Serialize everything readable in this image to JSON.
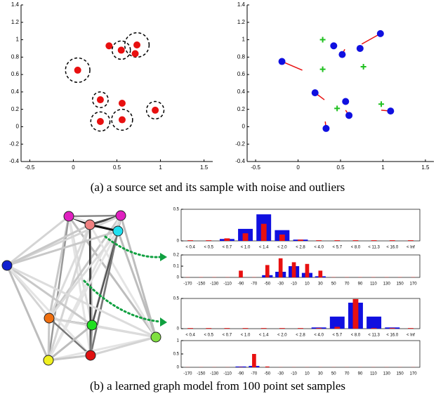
{
  "captions": {
    "a": "(a) a source set and its sample with noise and outliers",
    "b": "(b) a learned graph model from 100 point set samples"
  },
  "chart_data": [
    {
      "type": "scatter",
      "xlim": [
        -0.6,
        1.6
      ],
      "ylim": [
        -0.4,
        1.4
      ],
      "xticks": [
        -0.5,
        0,
        0.5,
        1,
        1.5
      ],
      "yticks": [
        -0.4,
        -0.2,
        0,
        0.2,
        0.4,
        0.6,
        0.8,
        1,
        1.2,
        1.4
      ],
      "series": [
        {
          "color": "#e81010",
          "marker": "circle",
          "x": [
            0.41,
            0.55,
            0.73,
            0.71,
            0.05,
            0.31,
            0.56,
            0.94,
            0.31,
            0.56
          ],
          "values": [
            0.93,
            0.88,
            0.94,
            0.84,
            0.65,
            0.31,
            0.27,
            0.19,
            0.06,
            0.08
          ]
        }
      ],
      "circles": {
        "x": [
          0.55,
          0.73,
          0.05,
          0.31,
          0.56,
          0.31,
          0.94
        ],
        "y": [
          0.88,
          0.94,
          0.65,
          0.31,
          0.08,
          0.06,
          0.19
        ],
        "r": [
          0.105,
          0.14,
          0.14,
          0.09,
          0.12,
          0.11,
          0.1
        ]
      }
    },
    {
      "type": "scatter",
      "xlim": [
        -0.6,
        1.6
      ],
      "ylim": [
        -0.4,
        1.4
      ],
      "xticks": [
        -0.5,
        0,
        0.5,
        1,
        1.5
      ],
      "yticks": [
        -0.4,
        -0.2,
        0,
        0.2,
        0.4,
        0.6,
        0.8,
        1,
        1.2,
        1.4
      ],
      "series": [
        {
          "color": "#1010e0",
          "marker": "circle",
          "x": [
            -0.19,
            0.42,
            0.52,
            0.73,
            0.97,
            0.2,
            0.56,
            0.6,
            0.33,
            1.09
          ],
          "values": [
            0.75,
            0.93,
            0.83,
            0.9,
            1.07,
            0.39,
            0.29,
            0.13,
            -0.02,
            0.18
          ]
        },
        {
          "color": "#20c020",
          "marker": "plus",
          "x": [
            0.29,
            0.29,
            0.77,
            0.46,
            0.98
          ],
          "values": [
            1.0,
            0.66,
            0.69,
            0.21,
            0.26
          ]
        }
      ],
      "segments": {
        "color": "#e81010",
        "x2": [
          0.05,
          null,
          0.55,
          null,
          0.75,
          0.31,
          null,
          0.56,
          0.32,
          0.98
        ],
        "y2": [
          0.65,
          null,
          0.89,
          null,
          0.95,
          0.31,
          null,
          0.19,
          0.06,
          0.19
        ]
      }
    },
    {
      "type": "bar",
      "ylim": [
        0,
        0.5
      ],
      "yticks": [
        0,
        0.5
      ],
      "categories": [
        "< 0.4",
        "< 0.5",
        "< 0.7",
        "< 1.0",
        "< 1.4",
        "< 2.0",
        "< 2.8",
        "< 4.0",
        "< 5.7",
        "< 8.0",
        "< 11.3",
        "< 16.0",
        "< Inf"
      ],
      "series": [
        {
          "color": "#1010e0",
          "values": [
            0,
            0,
            0.03,
            0.19,
            0.42,
            0.17,
            0.02,
            0,
            0,
            0,
            0,
            0,
            0
          ]
        },
        {
          "color": "#e81010",
          "values": [
            0.01,
            0.01,
            0.04,
            0.12,
            0.27,
            0.1,
            0.02,
            0.01,
            0.01,
            0.01,
            0.01,
            0.01,
            0.01
          ]
        }
      ]
    },
    {
      "type": "bar",
      "ylim": [
        0,
        0.2
      ],
      "yticks": [
        0,
        0.1,
        0.2
      ],
      "categories": [
        "-170",
        "-150",
        "-130",
        "-110",
        "-90",
        "-70",
        "-50",
        "-30",
        "-10",
        "10",
        "30",
        "50",
        "70",
        "90",
        "110",
        "130",
        "150",
        "170"
      ],
      "series": [
        {
          "color": "#1010e0",
          "values": [
            0,
            0,
            0,
            0,
            0,
            0,
            0.02,
            0.05,
            0.1,
            0.04,
            0.01,
            0,
            0,
            0,
            0,
            0,
            0,
            0
          ]
        },
        {
          "color": "#e81010",
          "values": [
            0.002,
            0.002,
            0.002,
            0.002,
            0.06,
            0.002,
            0.11,
            0.17,
            0.135,
            0.12,
            0.06,
            0.002,
            0.002,
            0.002,
            0.002,
            0.002,
            0.002,
            0.002
          ]
        }
      ]
    },
    {
      "type": "bar",
      "ylim": [
        0,
        0.5
      ],
      "yticks": [
        0,
        0.5
      ],
      "categories": [
        "< 0.4",
        "< 0.5",
        "< 0.7",
        "< 1.0",
        "< 1.4",
        "< 2.0",
        "< 2.8",
        "< 4.0",
        "< 5.7",
        "< 8.0",
        "< 11.3",
        "< 16.0",
        "< Inf"
      ],
      "series": [
        {
          "color": "#1010e0",
          "values": [
            0,
            0,
            0,
            0,
            0,
            0,
            0,
            0.02,
            0.2,
            0.43,
            0.2,
            0.02,
            0
          ]
        },
        {
          "color": "#e81010",
          "values": [
            0.01,
            0.01,
            0.01,
            0.01,
            0.01,
            0.01,
            0.01,
            0.01,
            0.03,
            0.49,
            0.01,
            0.01,
            0.01
          ]
        }
      ]
    },
    {
      "type": "bar",
      "ylim": [
        0,
        1
      ],
      "yticks": [
        0,
        0.5,
        1
      ],
      "categories": [
        "-170",
        "-150",
        "-130",
        "-110",
        "-90",
        "-70",
        "-50",
        "-30",
        "-10",
        "10",
        "30",
        "50",
        "70",
        "90",
        "110",
        "130",
        "150",
        "170"
      ],
      "series": [
        {
          "color": "#1010e0",
          "values": [
            0,
            0,
            0,
            0,
            0.03,
            0.05,
            0,
            0,
            0,
            0,
            0,
            0,
            0,
            0,
            0,
            0,
            0,
            0
          ]
        },
        {
          "color": "#e81010",
          "values": [
            0.005,
            0.005,
            0.005,
            0.005,
            0.01,
            0.5,
            0.03,
            0.005,
            0.005,
            0.005,
            0.005,
            0.005,
            0.005,
            0.005,
            0.005,
            0.005,
            0.005,
            0.005
          ]
        }
      ]
    }
  ]
}
